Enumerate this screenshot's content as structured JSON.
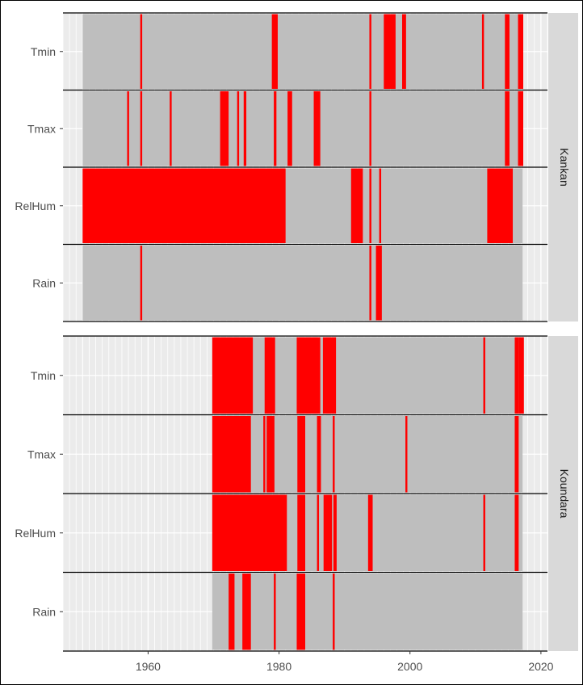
{
  "chart_data": {
    "type": "bar",
    "facet_orientation": "vertical",
    "x_range": [
      1947,
      2021
    ],
    "x_ticks": [
      1960,
      1980,
      2000,
      2020
    ],
    "grid": true,
    "series_order": [
      "Tmin",
      "Tmax",
      "RelHum",
      "Rain"
    ],
    "colors": {
      "available": "#bebebe",
      "missing": "#ff0000",
      "panel": "#ebebeb",
      "strip": "#d9d9d9"
    },
    "panels": [
      {
        "name": "Kankan",
        "rows": {
          "Tmin": {
            "available": [
              1950.0,
              2017.2
            ],
            "missing": [
              [
                1958.8,
                1959.1
              ],
              [
                1978.9,
                1979.8
              ],
              [
                1993.8,
                1994.1
              ],
              [
                1996.0,
                1997.8
              ],
              [
                1998.8,
                1999.4
              ],
              [
                2011.0,
                2011.3
              ],
              [
                2014.5,
                2015.2
              ],
              [
                2016.5,
                2017.3
              ]
            ]
          },
          "Tmax": {
            "available": [
              1950.0,
              2017.2
            ],
            "missing": [
              [
                1956.8,
                1957.1
              ],
              [
                1958.8,
                1959.1
              ],
              [
                1963.3,
                1963.6
              ],
              [
                1971.0,
                1972.3
              ],
              [
                1973.6,
                1973.9
              ],
              [
                1974.6,
                1975.0
              ],
              [
                1979.2,
                1979.6
              ],
              [
                1981.3,
                1982.0
              ],
              [
                1985.3,
                1986.3
              ],
              [
                1993.8,
                1994.1
              ],
              [
                2014.5,
                2015.2
              ],
              [
                2016.5,
                2017.3
              ]
            ]
          },
          "RelHum": {
            "available": [
              1950.0,
              2017.2
            ],
            "missing": [
              [
                1950.0,
                1981.0
              ],
              [
                1991.0,
                1992.8
              ],
              [
                1993.8,
                1994.1
              ],
              [
                1995.3,
                1995.6
              ],
              [
                2011.8,
                2015.7
              ]
            ]
          },
          "Rain": {
            "available": [
              1950.0,
              2017.2
            ],
            "missing": [
              [
                1958.8,
                1959.1
              ],
              [
                1993.8,
                1994.1
              ],
              [
                1994.8,
                1995.7
              ]
            ]
          }
        }
      },
      {
        "name": "Koundara",
        "rows": {
          "Tmin": {
            "available": [
              1969.8,
              2017.2
            ],
            "missing": [
              [
                1969.8,
                1976.0
              ],
              [
                1977.8,
                1979.4
              ],
              [
                1982.7,
                1986.3
              ],
              [
                1986.7,
                1988.7
              ],
              [
                2011.2,
                2011.5
              ],
              [
                2016.0,
                2016.6
              ],
              [
                2016.6,
                2017.4
              ]
            ]
          },
          "Tmax": {
            "available": [
              1969.8,
              2017.2
            ],
            "missing": [
              [
                1969.8,
                1975.7
              ],
              [
                1977.6,
                1977.9
              ],
              [
                1978.1,
                1979.3
              ],
              [
                1982.8,
                1984.0
              ],
              [
                1985.8,
                1986.4
              ],
              [
                1988.2,
                1988.5
              ],
              [
                1999.3,
                1999.6
              ],
              [
                2016.0,
                2016.6
              ]
            ]
          },
          "RelHum": {
            "available": [
              1969.8,
              2017.2
            ],
            "missing": [
              [
                1969.8,
                1981.2
              ],
              [
                1982.8,
                1984.0
              ],
              [
                1985.8,
                1986.1
              ],
              [
                1986.8,
                1988.1
              ],
              [
                1988.3,
                1988.8
              ],
              [
                1993.6,
                1994.3
              ],
              [
                2011.2,
                2011.5
              ],
              [
                2016.0,
                2016.6
              ]
            ]
          },
          "Rain": {
            "available": [
              1969.8,
              2017.2
            ],
            "missing": [
              [
                1972.3,
                1973.2
              ],
              [
                1974.4,
                1975.7
              ],
              [
                1979.2,
                1979.5
              ],
              [
                1982.7,
                1984.0
              ],
              [
                1988.2,
                1988.5
              ]
            ]
          }
        }
      }
    ]
  }
}
